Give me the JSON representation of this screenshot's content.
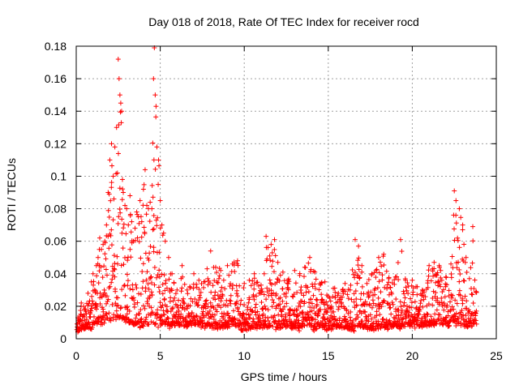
{
  "chart_data": {
    "type": "scatter",
    "title": "Day 018 of 2018, Rate Of TEC Index for receiver rocd",
    "xlabel": "GPS time / hours",
    "ylabel": "ROTI / TECUs",
    "xlim": [
      0,
      25
    ],
    "ylim": [
      0,
      0.18
    ],
    "x_ticks": [
      0,
      5,
      10,
      15,
      20,
      25
    ],
    "x_tick_labels": [
      "0",
      "5",
      "10",
      "15",
      "20",
      "25"
    ],
    "y_ticks": [
      0,
      0.02,
      0.04,
      0.06,
      0.08,
      0.1,
      0.12,
      0.14,
      0.16,
      0.18
    ],
    "y_tick_labels": [
      "0",
      "0.02",
      "0.04",
      "0.06",
      "0.08",
      "0.1",
      "0.12",
      "0.14",
      "0.16",
      "0.18"
    ],
    "grid": true,
    "marker": "+",
    "color": "#ff0000",
    "series": [
      {
        "name": "ROTI",
        "x": [
          0.1,
          0.3,
          0.5,
          0.7,
          0.9,
          1.0,
          1.1,
          1.2,
          1.3,
          1.4,
          1.5,
          1.6,
          1.7,
          1.8,
          1.9,
          2.0,
          2.1,
          2.2,
          2.3,
          2.4,
          2.5,
          2.55,
          2.6,
          2.65,
          2.7,
          2.75,
          2.8,
          2.9,
          3.0,
          3.1,
          3.2,
          3.3,
          3.4,
          3.5,
          3.6,
          3.7,
          3.8,
          3.9,
          4.0,
          4.1,
          4.2,
          4.3,
          4.4,
          4.5,
          4.6,
          4.65,
          4.7,
          4.75,
          4.8,
          4.9,
          5.0,
          5.1,
          5.2,
          5.3,
          5.5,
          5.7,
          6.0,
          6.3,
          6.6,
          7.0,
          7.3,
          7.6,
          8.0,
          8.3,
          8.6,
          9.0,
          9.3,
          9.6,
          10.0,
          10.3,
          10.6,
          11.0,
          11.3,
          11.6,
          11.8,
          12.0,
          12.3,
          12.6,
          13.0,
          13.3,
          13.6,
          13.9,
          14.2,
          14.5,
          14.8,
          15.0,
          15.3,
          15.6,
          16.0,
          16.3,
          16.6,
          16.8,
          17.0,
          17.3,
          17.6,
          18.0,
          18.3,
          18.6,
          19.0,
          19.3,
          19.6,
          20.0,
          20.3,
          20.6,
          21.0,
          21.3,
          21.6,
          22.0,
          22.3,
          22.5,
          22.6,
          22.8,
          23.0,
          23.2,
          23.4,
          23.6,
          23.8
        ],
        "y": [
          0.013,
          0.022,
          0.018,
          0.028,
          0.035,
          0.04,
          0.03,
          0.045,
          0.05,
          0.062,
          0.055,
          0.058,
          0.06,
          0.07,
          0.09,
          0.11,
          0.12,
          0.1,
          0.118,
          0.13,
          0.172,
          0.16,
          0.15,
          0.145,
          0.14,
          0.098,
          0.09,
          0.082,
          0.08,
          0.07,
          0.088,
          0.072,
          0.06,
          0.068,
          0.078,
          0.075,
          0.085,
          0.072,
          0.092,
          0.104,
          0.082,
          0.08,
          0.084,
          0.08,
          0.16,
          0.179,
          0.15,
          0.143,
          0.118,
          0.11,
          0.085,
          0.07,
          0.065,
          0.06,
          0.05,
          0.04,
          0.03,
          0.045,
          0.03,
          0.04,
          0.036,
          0.035,
          0.054,
          0.044,
          0.042,
          0.045,
          0.046,
          0.048,
          0.034,
          0.036,
          0.04,
          0.033,
          0.063,
          0.058,
          0.061,
          0.047,
          0.041,
          0.036,
          0.042,
          0.039,
          0.044,
          0.05,
          0.041,
          0.034,
          0.035,
          0.026,
          0.031,
          0.028,
          0.034,
          0.03,
          0.061,
          0.057,
          0.045,
          0.034,
          0.04,
          0.05,
          0.052,
          0.037,
          0.038,
          0.061,
          0.036,
          0.036,
          0.032,
          0.03,
          0.045,
          0.047,
          0.045,
          0.038,
          0.046,
          0.091,
          0.085,
          0.08,
          0.07,
          0.05,
          0.037,
          0.069,
          0.029
        ],
        "baseline_min": [
          0.005,
          0.007,
          0.006,
          0.008,
          0.007,
          0.008,
          0.009,
          0.01,
          0.008,
          0.009,
          0.01,
          0.009,
          0.01,
          0.011,
          0.012,
          0.01,
          0.012,
          0.011,
          0.013,
          0.012,
          0.014,
          0.013,
          0.012,
          0.014,
          0.013,
          0.012,
          0.013,
          0.012,
          0.011,
          0.01,
          0.01,
          0.01,
          0.009,
          0.01,
          0.009,
          0.009,
          0.008,
          0.009,
          0.008,
          0.009,
          0.01,
          0.009,
          0.01,
          0.01,
          0.009,
          0.01,
          0.008,
          0.009,
          0.009,
          0.008,
          0.009,
          0.01,
          0.01,
          0.009,
          0.008,
          0.007,
          0.008,
          0.009,
          0.008,
          0.009,
          0.008,
          0.007,
          0.008,
          0.006,
          0.008,
          0.007,
          0.008,
          0.007,
          0.006,
          0.007,
          0.008,
          0.007,
          0.008,
          0.007,
          0.006,
          0.007,
          0.008,
          0.008,
          0.007,
          0.006,
          0.008,
          0.007,
          0.006,
          0.008,
          0.007,
          0.006,
          0.007,
          0.008,
          0.007,
          0.006,
          0.006,
          0.007,
          0.008,
          0.007,
          0.006,
          0.007,
          0.008,
          0.007,
          0.008,
          0.007,
          0.009,
          0.008,
          0.007,
          0.008,
          0.009,
          0.008,
          0.009,
          0.008,
          0.009,
          0.01,
          0.009,
          0.008,
          0.009,
          0.008,
          0.009,
          0.008,
          0.01
        ]
      }
    ]
  }
}
